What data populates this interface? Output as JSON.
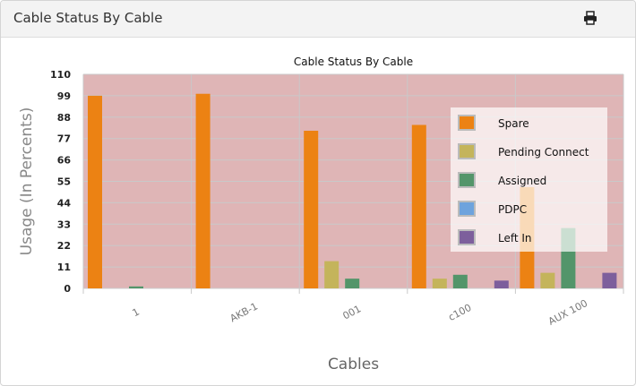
{
  "header": {
    "title": "Cable Status By Cable",
    "print_icon": "printer-icon"
  },
  "chart_data": {
    "type": "bar",
    "title": "Cable Status By Cable",
    "xlabel": "Cables",
    "ylabel": "Usage  (In Percents)",
    "ylim": [
      0,
      110
    ],
    "yticks": [
      "0",
      "11",
      "22",
      "33",
      "44",
      "55",
      "66",
      "77",
      "88",
      "99",
      "110"
    ],
    "categories": [
      "1",
      "AKB-1",
      "001",
      "c100",
      "AUX 100"
    ],
    "grid": true,
    "legend_position": "right",
    "background": "#dfb5b6",
    "series": [
      {
        "name": "Spare",
        "color": "#ec8213",
        "values": [
          99,
          100,
          81,
          84,
          52
        ]
      },
      {
        "name": "Pending Connect",
        "color": "#c4b45b",
        "values": [
          0,
          0,
          14,
          5,
          8
        ]
      },
      {
        "name": "Assigned",
        "color": "#53956a",
        "values": [
          1,
          0,
          5,
          7,
          31
        ]
      },
      {
        "name": "PDPC",
        "color": "#6ea3dd",
        "values": [
          0,
          0,
          0,
          0,
          0
        ]
      },
      {
        "name": "Left In",
        "color": "#7d5f9c",
        "values": [
          0,
          0,
          0,
          4,
          8
        ]
      }
    ]
  }
}
